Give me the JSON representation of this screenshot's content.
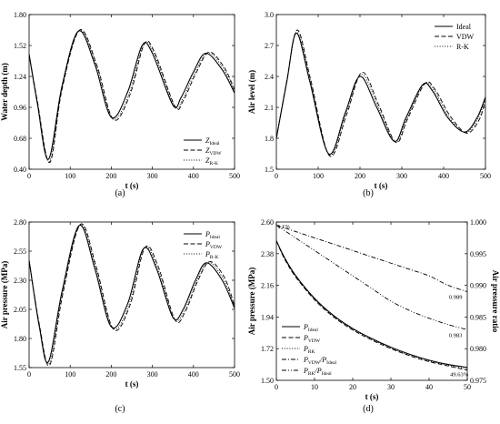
{
  "chart_data": [
    {
      "id": "a",
      "type": "line",
      "panel_label": "(a)",
      "xlabel": "t (s)",
      "ylabel": "Water depth (m)",
      "xlim": [
        0,
        500
      ],
      "ylim": [
        0.4,
        1.8
      ],
      "xticks": [
        0,
        100,
        200,
        300,
        400,
        500
      ],
      "yticks": [
        0.4,
        0.68,
        0.96,
        1.24,
        1.52,
        1.8
      ],
      "ytick_labels": [
        "0.40",
        "0.68",
        "0.96",
        "1.24",
        "1.52",
        "1.80"
      ],
      "legend_position": "lower-right",
      "legend": [
        {
          "main": "Z",
          "sub": "Ideal",
          "style": "solid"
        },
        {
          "main": "Z",
          "sub": "VDW",
          "style": "dashed"
        },
        {
          "main": "Z",
          "sub": "R-K",
          "style": "dotted"
        }
      ],
      "series": [
        {
          "style": "solid",
          "x": [
            0,
            20,
            47,
            80,
            120,
            160,
            200,
            240,
            275,
            300,
            350,
            370,
            400,
            430,
            470,
            500
          ],
          "y": [
            1.44,
            1.0,
            0.49,
            1.15,
            1.65,
            1.35,
            0.87,
            1.1,
            1.52,
            1.45,
            0.98,
            1.05,
            1.28,
            1.45,
            1.3,
            1.09
          ]
        },
        {
          "style": "dashed",
          "x": [
            0,
            20,
            50,
            80,
            123,
            165,
            205,
            245,
            280,
            305,
            355,
            375,
            405,
            438,
            475,
            500
          ],
          "y": [
            1.44,
            1.02,
            0.46,
            1.12,
            1.66,
            1.34,
            0.85,
            1.07,
            1.53,
            1.46,
            0.97,
            1.02,
            1.26,
            1.46,
            1.32,
            1.12
          ]
        },
        {
          "style": "dotted",
          "x": [
            0,
            20,
            49,
            80,
            122,
            163,
            203,
            243,
            278,
            303,
            353,
            373,
            403,
            435,
            473,
            500
          ],
          "y": [
            1.44,
            1.01,
            0.47,
            1.13,
            1.655,
            1.345,
            0.86,
            1.08,
            1.525,
            1.455,
            0.975,
            1.03,
            1.27,
            1.455,
            1.31,
            1.105
          ]
        }
      ]
    },
    {
      "id": "b",
      "type": "line",
      "panel_label": "(b)",
      "xlabel": "t (s)",
      "ylabel": "Air level (m)",
      "xlim": [
        0,
        500
      ],
      "ylim": [
        1.5,
        3.0
      ],
      "xticks": [
        0,
        100,
        200,
        300,
        400,
        500
      ],
      "yticks": [
        1.5,
        1.8,
        2.1,
        2.4,
        2.7,
        3.0
      ],
      "ytick_labels": [
        "1.5",
        "1.8",
        "2.1",
        "2.4",
        "2.7",
        "3.0"
      ],
      "legend_position": "top-right",
      "legend": [
        {
          "main": "Ideal",
          "sub": "",
          "style": "solid"
        },
        {
          "main": "VDW",
          "sub": "",
          "style": "dashed"
        },
        {
          "main": "R-K",
          "sub": "",
          "style": "dotted"
        }
      ],
      "series": [
        {
          "style": "solid",
          "x": [
            0,
            25,
            48,
            80,
            125,
            165,
            200,
            240,
            282,
            310,
            350,
            375,
            410,
            450,
            480,
            500
          ],
          "y": [
            1.8,
            2.35,
            2.82,
            2.35,
            1.65,
            2.05,
            2.4,
            2.1,
            1.77,
            2.0,
            2.32,
            2.25,
            2.0,
            1.86,
            2.0,
            2.2
          ]
        },
        {
          "style": "dashed",
          "x": [
            0,
            25,
            50,
            82,
            127,
            168,
            205,
            245,
            286,
            313,
            355,
            380,
            415,
            455,
            485,
            500
          ],
          "y": [
            1.8,
            2.36,
            2.85,
            2.37,
            1.63,
            2.03,
            2.44,
            2.12,
            1.76,
            1.98,
            2.33,
            2.27,
            2.02,
            1.85,
            1.98,
            2.17
          ]
        },
        {
          "style": "dotted",
          "x": [
            0,
            25,
            49,
            81,
            126,
            166,
            203,
            243,
            284,
            312,
            352,
            378,
            412,
            452,
            482,
            500
          ],
          "y": [
            1.8,
            2.355,
            2.83,
            2.36,
            1.64,
            2.04,
            2.42,
            2.11,
            1.765,
            1.99,
            2.325,
            2.26,
            2.01,
            1.855,
            1.99,
            2.19
          ]
        }
      ]
    },
    {
      "id": "c",
      "type": "line",
      "panel_label": "(c)",
      "xlabel": "t (s)",
      "ylabel": "Air pressure (MPa)",
      "xlim": [
        0,
        500
      ],
      "ylim": [
        1.55,
        2.8
      ],
      "xticks": [
        0,
        100,
        200,
        300,
        400,
        500
      ],
      "yticks": [
        1.55,
        1.8,
        2.05,
        2.3,
        2.55,
        2.8
      ],
      "ytick_labels": [
        "1.55",
        "1.80",
        "2.05",
        "2.30",
        "2.55",
        "2.80"
      ],
      "legend_position": "top-right",
      "legend": [
        {
          "main": "P",
          "sub": "Ideal",
          "style": "solid"
        },
        {
          "main": "P",
          "sub": "VDW",
          "style": "dashed"
        },
        {
          "main": "P",
          "sub": "R-K",
          "style": "dotted"
        }
      ],
      "series": [
        {
          "style": "solid",
          "x": [
            0,
            25,
            47,
            80,
            122,
            160,
            200,
            240,
            278,
            310,
            350,
            375,
            405,
            432,
            470,
            500
          ],
          "y": [
            2.47,
            1.9,
            1.6,
            2.2,
            2.77,
            2.4,
            1.9,
            2.1,
            2.57,
            2.4,
            1.98,
            2.05,
            2.3,
            2.45,
            2.3,
            2.06
          ]
        },
        {
          "style": "dashed",
          "x": [
            0,
            25,
            50,
            82,
            125,
            163,
            205,
            245,
            282,
            314,
            355,
            380,
            410,
            440,
            476,
            500
          ],
          "y": [
            2.47,
            1.92,
            1.57,
            2.18,
            2.78,
            2.42,
            1.88,
            2.08,
            2.58,
            2.42,
            1.96,
            2.03,
            2.29,
            2.46,
            2.32,
            2.08
          ]
        },
        {
          "style": "dotted",
          "x": [
            0,
            25,
            49,
            81,
            124,
            162,
            203,
            243,
            280,
            312,
            353,
            378,
            408,
            436,
            473,
            500
          ],
          "y": [
            2.47,
            1.91,
            1.585,
            2.19,
            2.775,
            2.41,
            1.89,
            2.09,
            2.575,
            2.41,
            1.97,
            2.04,
            2.295,
            2.455,
            2.31,
            2.07
          ]
        }
      ]
    },
    {
      "id": "d",
      "type": "line",
      "panel_label": "(d)",
      "xlabel": "t (s)",
      "ylabel": "Air pressure (MPa)",
      "ylabel_right": "Air pressure ratio",
      "xlim": [
        0,
        50
      ],
      "ylim": [
        1.5,
        2.6
      ],
      "ylim_right": [
        0.975,
        1.0
      ],
      "xticks": [
        0,
        10,
        20,
        30,
        40,
        50
      ],
      "yticks": [
        1.5,
        1.72,
        1.94,
        2.16,
        2.38,
        2.6
      ],
      "ytick_labels": [
        "1.50",
        "1.72",
        "1.94",
        "2.16",
        "2.38",
        "2.60"
      ],
      "yticks_right": [
        0.975,
        0.98,
        0.985,
        0.99,
        0.995,
        1.0
      ],
      "ytick_labels_right": [
        "0.975",
        "0.980",
        "0.985",
        "0.990",
        "0.995",
        "1.000"
      ],
      "legend_position": "lower-left",
      "legend": [
        {
          "main": "P",
          "sub": "Ideal",
          "style": "solid"
        },
        {
          "main": "P",
          "sub": "VDW",
          "style": "dashed"
        },
        {
          "main": "P",
          "sub": "RK",
          "style": "dotted"
        },
        {
          "main": "P",
          "sub": "VDW",
          "main2": "/P",
          "sub2": "Ideal",
          "style": "dashdot"
        },
        {
          "main": "P",
          "sub": "RK",
          "main2": "/P",
          "sub2": "Ideal",
          "style": "dashdotdot"
        }
      ],
      "annotations": [
        {
          "text": "1.1%",
          "x": 0.3,
          "y": 2.555
        },
        {
          "text": "0.989",
          "x": 45.2,
          "y": 2.065
        },
        {
          "text": "0.983",
          "x": 45.2,
          "y": 1.8
        },
        {
          "text": "49.63%",
          "x": 45.5,
          "y": 1.53
        }
      ],
      "series": [
        {
          "style": "solid",
          "axis": "left",
          "x": [
            0,
            2,
            5,
            10,
            15,
            20,
            25,
            30,
            35,
            40,
            45,
            50
          ],
          "y": [
            2.47,
            2.36,
            2.23,
            2.07,
            1.95,
            1.86,
            1.79,
            1.73,
            1.68,
            1.64,
            1.61,
            1.59
          ]
        },
        {
          "style": "dashed",
          "axis": "left",
          "x": [
            0,
            2,
            5,
            10,
            15,
            20,
            25,
            30,
            35,
            40,
            45,
            50
          ],
          "y": [
            2.47,
            2.35,
            2.22,
            2.06,
            1.94,
            1.85,
            1.78,
            1.72,
            1.67,
            1.63,
            1.6,
            1.57
          ]
        },
        {
          "style": "dotted",
          "axis": "left",
          "x": [
            0,
            2,
            5,
            10,
            15,
            20,
            25,
            30,
            35,
            40,
            45,
            50
          ],
          "y": [
            2.47,
            2.355,
            2.225,
            2.065,
            1.945,
            1.855,
            1.785,
            1.725,
            1.675,
            1.635,
            1.605,
            1.58
          ]
        },
        {
          "style": "dashdot",
          "axis": "right",
          "x": [
            0,
            5,
            10,
            15,
            20,
            25,
            30,
            35,
            40,
            45,
            50
          ],
          "y": [
            0.9995,
            0.9985,
            0.9975,
            0.9965,
            0.9955,
            0.9945,
            0.9935,
            0.9925,
            0.9915,
            0.99,
            0.989
          ]
        },
        {
          "style": "dashdotdot",
          "axis": "right",
          "x": [
            0,
            5,
            10,
            15,
            20,
            25,
            30,
            35,
            40,
            45,
            50
          ],
          "y": [
            0.9995,
            0.9975,
            0.9955,
            0.9935,
            0.9915,
            0.9895,
            0.9875,
            0.986,
            0.9848,
            0.9838,
            0.983
          ]
        }
      ]
    }
  ]
}
